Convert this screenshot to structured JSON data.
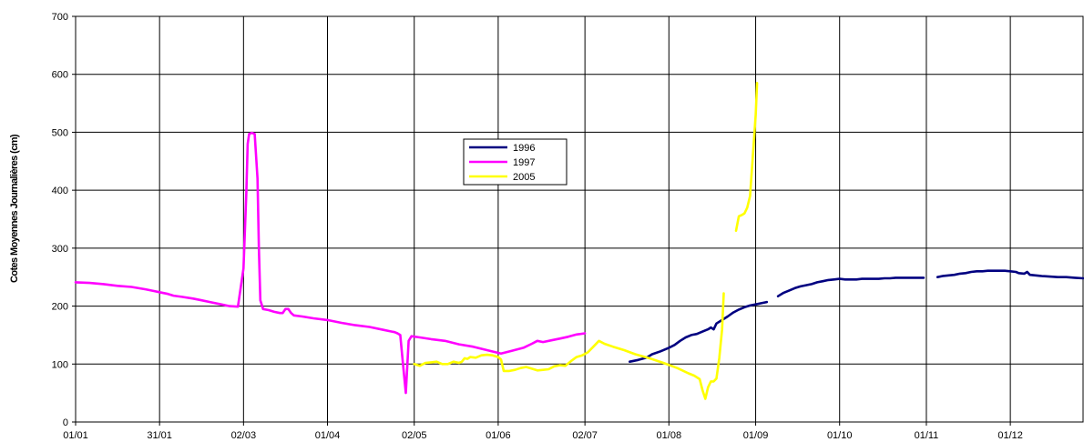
{
  "chart_data": {
    "type": "line",
    "title": "",
    "xlabel": "",
    "ylabel": "Cotes Moyennes Journalières (cm)",
    "x_unit": "day-of-year",
    "xlim": [
      0,
      360
    ],
    "ylim": [
      0,
      700
    ],
    "y_ticks": [
      0,
      100,
      200,
      300,
      400,
      500,
      600,
      700
    ],
    "x_ticks": [
      {
        "day": 0,
        "label": "01/01"
      },
      {
        "day": 30,
        "label": "31/01"
      },
      {
        "day": 60,
        "label": "02/03"
      },
      {
        "day": 90,
        "label": "01/04"
      },
      {
        "day": 121,
        "label": "02/05"
      },
      {
        "day": 151,
        "label": "01/06"
      },
      {
        "day": 182,
        "label": "02/07"
      },
      {
        "day": 212,
        "label": "01/08"
      },
      {
        "day": 243,
        "label": "01/09"
      },
      {
        "day": 273,
        "label": "01/10"
      },
      {
        "day": 304,
        "label": "01/11"
      },
      {
        "day": 334,
        "label": "01/12"
      }
    ],
    "grid": true,
    "legend_position": "center",
    "series": [
      {
        "name": "1996",
        "color": "#000080",
        "segments": [
          [
            [
              198,
              104
            ],
            [
              201,
              107
            ],
            [
              204,
              111
            ],
            [
              206,
              117
            ],
            [
              209,
              122
            ],
            [
              212,
              128
            ],
            [
              214,
              133
            ],
            [
              216,
              140
            ],
            [
              218,
              146
            ],
            [
              220,
              150
            ],
            [
              222,
              152
            ],
            [
              224,
              156
            ],
            [
              226,
              160
            ],
            [
              227,
              163
            ],
            [
              228,
              160
            ],
            [
              229,
              170
            ],
            [
              231,
              176
            ],
            [
              233,
              182
            ],
            [
              235,
              189
            ],
            [
              237,
              194
            ],
            [
              239,
              198
            ],
            [
              241,
              201
            ],
            [
              243,
              203
            ],
            [
              245,
              205
            ],
            [
              247,
              207
            ]
          ],
          [
            [
              251,
              217
            ],
            [
              253,
              223
            ],
            [
              255,
              227
            ],
            [
              257,
              231
            ],
            [
              259,
              234
            ],
            [
              261,
              236
            ],
            [
              263,
              238
            ],
            [
              265,
              241
            ],
            [
              267,
              243
            ],
            [
              269,
              245
            ],
            [
              271,
              246
            ],
            [
              273,
              247
            ],
            [
              275,
              246
            ],
            [
              277,
              246
            ],
            [
              279,
              246
            ],
            [
              281,
              247
            ],
            [
              283,
              247
            ],
            [
              285,
              247
            ],
            [
              287,
              247
            ],
            [
              289,
              248
            ],
            [
              291,
              248
            ],
            [
              293,
              249
            ],
            [
              295,
              249
            ],
            [
              297,
              249
            ],
            [
              299,
              249
            ],
            [
              301,
              249
            ],
            [
              303,
              249
            ]
          ],
          [
            [
              308,
              250
            ],
            [
              310,
              252
            ],
            [
              312,
              253
            ],
            [
              314,
              254
            ],
            [
              316,
              256
            ],
            [
              318,
              257
            ],
            [
              320,
              259
            ],
            [
              322,
              260
            ],
            [
              324,
              260
            ],
            [
              326,
              261
            ],
            [
              328,
              261
            ],
            [
              330,
              261
            ],
            [
              332,
              261
            ],
            [
              334,
              260
            ],
            [
              336,
              259
            ],
            [
              337,
              257
            ],
            [
              339,
              256
            ],
            [
              340,
              259
            ],
            [
              341,
              254
            ],
            [
              343,
              253
            ],
            [
              345,
              252
            ],
            [
              348,
              251
            ],
            [
              351,
              250
            ],
            [
              354,
              250
            ],
            [
              357,
              249
            ],
            [
              360,
              248
            ]
          ]
        ]
      },
      {
        "name": "1997",
        "color": "#ff00ff",
        "segments": [
          [
            [
              0,
              241
            ],
            [
              5,
              240
            ],
            [
              10,
              238
            ],
            [
              15,
              235
            ],
            [
              20,
              233
            ],
            [
              25,
              229
            ],
            [
              28,
              226
            ],
            [
              30,
              224
            ],
            [
              33,
              221
            ],
            [
              35,
              218
            ],
            [
              38,
              216
            ],
            [
              42,
              213
            ],
            [
              45,
              210
            ],
            [
              48,
              207
            ],
            [
              52,
              203
            ],
            [
              55,
              200
            ],
            [
              58,
              199
            ],
            [
              60,
              265
            ],
            [
              61,
              395
            ],
            [
              61.5,
              480
            ],
            [
              62,
              497
            ],
            [
              63,
              499
            ],
            [
              64,
              497
            ],
            [
              65,
              420
            ],
            [
              65.5,
              300
            ],
            [
              66,
              210
            ],
            [
              67,
              195
            ],
            [
              69,
              193
            ],
            [
              71,
              190
            ],
            [
              73,
              188
            ],
            [
              74,
              188
            ],
            [
              75,
              195
            ],
            [
              76,
              195
            ],
            [
              77,
              188
            ],
            [
              78,
              184
            ],
            [
              81,
              182
            ],
            [
              85,
              179
            ],
            [
              90,
              176
            ],
            [
              95,
              171
            ],
            [
              100,
              167
            ],
            [
              105,
              164
            ],
            [
              110,
              159
            ],
            [
              112,
              157
            ],
            [
              113,
              156
            ],
            [
              114,
              155
            ],
            [
              115,
              153
            ],
            [
              116,
              150
            ],
            [
              117,
              100
            ],
            [
              118,
              50
            ],
            [
              119,
              140
            ],
            [
              120,
              148
            ],
            [
              123,
              146
            ],
            [
              127,
              143
            ],
            [
              132,
              140
            ],
            [
              137,
              134
            ],
            [
              142,
              130
            ],
            [
              147,
              124
            ],
            [
              152,
              118
            ],
            [
              156,
              123
            ],
            [
              160,
              128
            ],
            [
              163,
              135
            ],
            [
              165,
              140
            ],
            [
              167,
              138
            ],
            [
              170,
              141
            ],
            [
              173,
              144
            ],
            [
              176,
              147
            ],
            [
              179,
              151
            ],
            [
              182,
              153
            ]
          ]
        ]
      },
      {
        "name": "2005",
        "color": "#ffff00",
        "segments": [
          [
            [
              121,
              100
            ],
            [
              123,
              97
            ],
            [
              125,
              102
            ],
            [
              127,
              103
            ],
            [
              129,
              104
            ],
            [
              131,
              100
            ],
            [
              133,
              100
            ],
            [
              135,
              104
            ],
            [
              137,
              102
            ],
            [
              138,
              104
            ],
            [
              139,
              110
            ],
            [
              140,
              109
            ],
            [
              141,
              112
            ],
            [
              143,
              111
            ],
            [
              145,
              115
            ],
            [
              147,
              116
            ],
            [
              149,
              115
            ],
            [
              151,
              112
            ],
            [
              152,
              108
            ],
            [
              153,
              88
            ],
            [
              155,
              88
            ],
            [
              157,
              90
            ],
            [
              159,
              93
            ],
            [
              161,
              95
            ],
            [
              163,
              92
            ],
            [
              165,
              89
            ],
            [
              167,
              90
            ],
            [
              169,
              91
            ],
            [
              171,
              96
            ],
            [
              173,
              98
            ],
            [
              175,
              97
            ],
            [
              177,
              105
            ],
            [
              179,
              112
            ],
            [
              181,
              115
            ],
            [
              183,
              120
            ],
            [
              185,
              130
            ],
            [
              187,
              140
            ],
            [
              189,
              135
            ],
            [
              192,
              130
            ],
            [
              196,
              124
            ],
            [
              200,
              117
            ],
            [
              205,
              110
            ],
            [
              210,
              102
            ],
            [
              215,
              93
            ],
            [
              219,
              84
            ],
            [
              221,
              80
            ],
            [
              223,
              74
            ],
            [
              224,
              55
            ],
            [
              225,
              40
            ],
            [
              226,
              60
            ],
            [
              227,
              70
            ],
            [
              228,
              70
            ],
            [
              229,
              75
            ],
            [
              230,
              110
            ],
            [
              231,
              160
            ],
            [
              231.6,
              222
            ]
          ],
          [
            [
              236,
              330
            ],
            [
              237,
              355
            ],
            [
              238,
              357
            ],
            [
              239,
              360
            ],
            [
              240,
              370
            ],
            [
              241,
              390
            ],
            [
              242,
              460
            ],
            [
              243,
              530
            ],
            [
              243.5,
              585
            ]
          ]
        ]
      }
    ]
  }
}
